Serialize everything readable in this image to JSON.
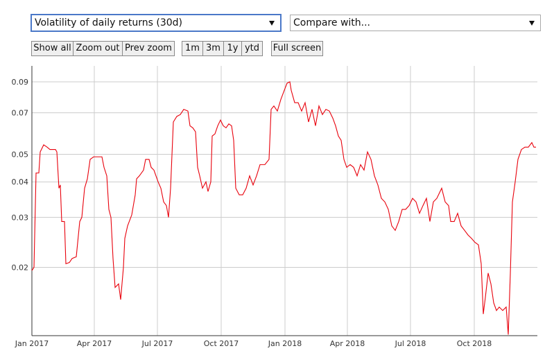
{
  "controls": {
    "metric_select": "Volatility of daily returns (30d)",
    "compare_select": "Compare with...",
    "zoom_buttons": [
      "Show all",
      "Zoom out",
      "Prev zoom"
    ],
    "range_buttons": [
      "1m",
      "3m",
      "1y",
      "ytd"
    ],
    "fullscreen_button": "Full screen"
  },
  "chart_data": {
    "type": "line",
    "color": "#e8000b",
    "log_scale": true,
    "grid": true,
    "xlim": [
      "2017-01-01",
      "2018-12-31"
    ],
    "xticks": [
      {
        "value": "2017-01-01",
        "label": "Jan 2017"
      },
      {
        "value": "2017-04-01",
        "label": "Apr 2017"
      },
      {
        "value": "2017-07-01",
        "label": "Jul 2017"
      },
      {
        "value": "2017-10-01",
        "label": "Oct 2017"
      },
      {
        "value": "2018-01-01",
        "label": "Jan 2018"
      },
      {
        "value": "2018-04-01",
        "label": "Apr 2018"
      },
      {
        "value": "2018-07-01",
        "label": "Jul 2018"
      },
      {
        "value": "2018-10-01",
        "label": "Oct 2018"
      }
    ],
    "ylim": [
      0.0115,
      0.1024
    ],
    "yticks": [
      0.02,
      0.03,
      0.04,
      0.05,
      0.07,
      0.09
    ],
    "x": [
      "2017-01-01",
      "2017-01-04",
      "2017-01-07",
      "2017-01-11",
      "2017-01-13",
      "2017-01-18",
      "2017-01-23",
      "2017-01-27",
      "2017-02-04",
      "2017-02-06",
      "2017-02-09",
      "2017-02-11",
      "2017-02-13",
      "2017-02-17",
      "2017-02-19",
      "2017-02-24",
      "2017-02-28",
      "2017-03-06",
      "2017-03-11",
      "2017-03-14",
      "2017-03-18",
      "2017-03-22",
      "2017-03-26",
      "2017-03-31",
      "2017-04-05",
      "2017-04-12",
      "2017-04-15",
      "2017-04-19",
      "2017-04-22",
      "2017-04-25",
      "2017-04-28",
      "2017-05-01",
      "2017-05-06",
      "2017-05-09",
      "2017-05-13",
      "2017-05-15",
      "2017-05-19",
      "2017-05-25",
      "2017-05-30",
      "2017-06-01",
      "2017-06-05",
      "2017-06-11",
      "2017-06-14",
      "2017-06-19",
      "2017-06-22",
      "2017-06-26",
      "2017-07-02",
      "2017-07-06",
      "2017-07-10",
      "2017-07-14",
      "2017-07-17",
      "2017-07-20",
      "2017-07-24",
      "2017-07-29",
      "2017-08-03",
      "2017-08-08",
      "2017-08-14",
      "2017-08-17",
      "2017-08-21",
      "2017-08-25",
      "2017-08-28",
      "2017-08-31",
      "2017-09-04",
      "2017-09-09",
      "2017-09-12",
      "2017-09-16",
      "2017-09-18",
      "2017-09-22",
      "2017-09-26",
      "2017-09-30",
      "2017-10-04",
      "2017-10-08",
      "2017-10-12",
      "2017-10-16",
      "2017-10-19",
      "2017-10-22",
      "2017-10-27",
      "2017-11-01",
      "2017-11-06",
      "2017-11-11",
      "2017-11-16",
      "2017-11-21",
      "2017-11-26",
      "2017-12-03",
      "2017-12-09",
      "2017-12-12",
      "2017-12-16",
      "2017-12-21",
      "2017-12-26",
      "2017-12-31",
      "2018-01-04",
      "2018-01-08",
      "2018-01-10",
      "2018-01-15",
      "2018-01-20",
      "2018-01-25",
      "2018-01-30",
      "2018-02-04",
      "2018-02-09",
      "2018-02-14",
      "2018-02-19",
      "2018-02-24",
      "2018-03-01",
      "2018-03-06",
      "2018-03-11",
      "2018-03-15",
      "2018-03-19",
      "2018-03-23",
      "2018-03-27",
      "2018-03-31",
      "2018-04-05",
      "2018-04-10",
      "2018-04-15",
      "2018-04-20",
      "2018-04-25",
      "2018-04-30",
      "2018-05-05",
      "2018-05-10",
      "2018-05-15",
      "2018-05-20",
      "2018-05-25",
      "2018-05-30",
      "2018-06-04",
      "2018-06-09",
      "2018-06-14",
      "2018-06-19",
      "2018-06-24",
      "2018-06-29",
      "2018-07-04",
      "2018-07-09",
      "2018-07-14",
      "2018-07-19",
      "2018-07-24",
      "2018-07-29",
      "2018-08-03",
      "2018-08-08",
      "2018-08-15",
      "2018-08-20",
      "2018-08-25",
      "2018-08-28",
      "2018-09-02",
      "2018-09-07",
      "2018-09-12",
      "2018-09-17",
      "2018-09-22",
      "2018-09-27",
      "2018-10-02",
      "2018-10-07",
      "2018-10-11",
      "2018-10-14",
      "2018-10-17",
      "2018-10-21",
      "2018-10-25",
      "2018-10-29",
      "2018-11-02",
      "2018-11-06",
      "2018-11-11",
      "2018-11-16",
      "2018-11-19",
      "2018-11-22",
      "2018-11-25",
      "2018-11-29",
      "2018-12-03",
      "2018-12-08",
      "2018-12-13",
      "2018-12-18",
      "2018-12-23",
      "2018-12-26",
      "2018-12-29"
    ],
    "values": [
      0.0195,
      0.02,
      0.043,
      0.043,
      0.051,
      0.054,
      0.053,
      0.052,
      0.052,
      0.051,
      0.038,
      0.039,
      0.029,
      0.029,
      0.0206,
      0.0208,
      0.0215,
      0.0218,
      0.029,
      0.03,
      0.038,
      0.041,
      0.048,
      0.049,
      0.049,
      0.049,
      0.045,
      0.042,
      0.032,
      0.03,
      0.0215,
      0.017,
      0.0175,
      0.0154,
      0.02,
      0.0253,
      0.028,
      0.0306,
      0.036,
      0.041,
      0.042,
      0.044,
      0.048,
      0.048,
      0.045,
      0.044,
      0.04,
      0.038,
      0.034,
      0.033,
      0.03,
      0.038,
      0.065,
      0.068,
      0.069,
      0.072,
      0.071,
      0.063,
      0.062,
      0.06,
      0.045,
      0.042,
      0.038,
      0.04,
      0.037,
      0.04,
      0.058,
      0.059,
      0.063,
      0.066,
      0.063,
      0.062,
      0.064,
      0.063,
      0.056,
      0.038,
      0.036,
      0.036,
      0.038,
      0.042,
      0.039,
      0.042,
      0.046,
      0.046,
      0.048,
      0.072,
      0.074,
      0.071,
      0.078,
      0.084,
      0.089,
      0.09,
      0.084,
      0.076,
      0.076,
      0.071,
      0.076,
      0.065,
      0.072,
      0.063,
      0.074,
      0.069,
      0.072,
      0.071,
      0.067,
      0.063,
      0.058,
      0.056,
      0.048,
      0.045,
      0.046,
      0.045,
      0.042,
      0.046,
      0.044,
      0.051,
      0.048,
      0.042,
      0.039,
      0.035,
      0.034,
      0.032,
      0.028,
      0.027,
      0.029,
      0.032,
      0.032,
      0.033,
      0.035,
      0.034,
      0.031,
      0.033,
      0.035,
      0.029,
      0.034,
      0.035,
      0.038,
      0.034,
      0.033,
      0.029,
      0.029,
      0.031,
      0.028,
      0.027,
      0.026,
      0.0253,
      0.0245,
      0.024,
      0.0206,
      0.0137,
      0.0157,
      0.0191,
      0.0175,
      0.015,
      0.0141,
      0.0145,
      0.0141,
      0.0145,
      0.0116,
      0.019,
      0.034,
      0.04,
      0.048,
      0.052,
      0.053,
      0.053,
      0.055,
      0.053,
      0.053
    ]
  }
}
